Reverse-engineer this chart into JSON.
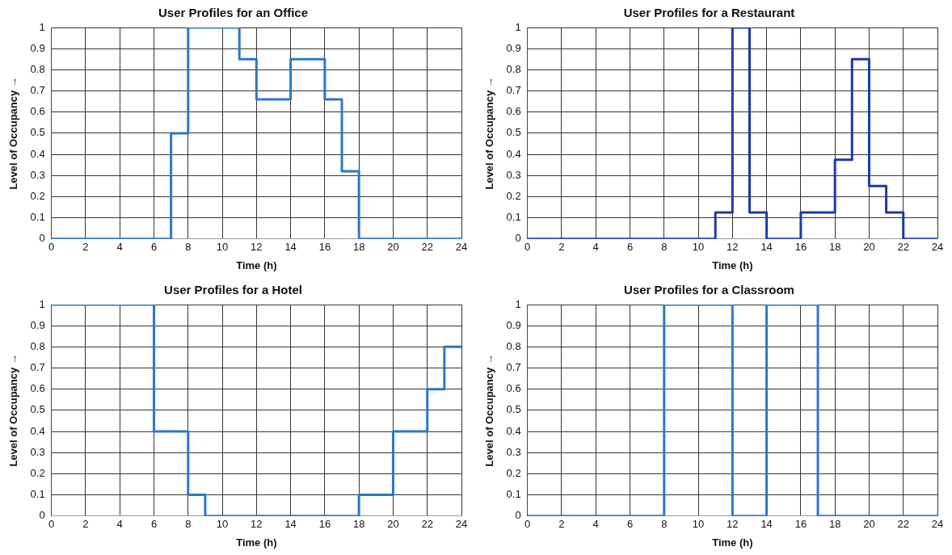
{
  "chart_data": [
    {
      "type": "step",
      "title": "User Profiles for an Office",
      "xlabel": "Time (h)",
      "ylabel": "Level of Occupancy →",
      "x": [
        0,
        7,
        8,
        11,
        12,
        14,
        16,
        17,
        18,
        24
      ],
      "series": [
        {
          "color": "#2b78c4",
          "values": [
            0,
            0.5,
            1,
            0.85,
            0.66,
            0.85,
            0.66,
            0.32,
            0,
            0
          ]
        }
      ],
      "xlim": [
        0,
        24
      ],
      "xticks": [
        0,
        2,
        4,
        6,
        8,
        10,
        12,
        14,
        16,
        18,
        20,
        22,
        24
      ],
      "ylim": [
        0,
        1
      ],
      "yticks": [
        0,
        0.1,
        0.2,
        0.3,
        0.4,
        0.5,
        0.6,
        0.7,
        0.8,
        0.9,
        1
      ],
      "grid": true,
      "legend": false,
      "marker": "none",
      "line_style": "solid"
    },
    {
      "type": "step",
      "title": "User Profiles for a Restaurant",
      "xlabel": "Time (h)",
      "ylabel": "Level of Occupancy →",
      "x": [
        0,
        11,
        12,
        13,
        14,
        16,
        18,
        19,
        20,
        21,
        22,
        24
      ],
      "series": [
        {
          "color": "#1c3aa6",
          "values": [
            0,
            0.125,
            1,
            0.125,
            0,
            0.125,
            0.375,
            0.85,
            0.25,
            0.125,
            0,
            0
          ]
        }
      ],
      "xlim": [
        0,
        24
      ],
      "xticks": [
        0,
        2,
        4,
        6,
        8,
        10,
        12,
        14,
        16,
        18,
        20,
        22,
        24
      ],
      "ylim": [
        0,
        1
      ],
      "yticks": [
        0,
        0.1,
        0.2,
        0.3,
        0.4,
        0.5,
        0.6,
        0.7,
        0.8,
        0.9,
        1
      ],
      "grid": true,
      "legend": false,
      "marker": "none",
      "line_style": "solid"
    },
    {
      "type": "step",
      "title": "User Profiles for a Hotel",
      "xlabel": "Time (h)",
      "ylabel": "Level of Occupancy →",
      "x": [
        0,
        6,
        8,
        9,
        18,
        20,
        22,
        23,
        24
      ],
      "series": [
        {
          "color": "#2b78c4",
          "values": [
            1,
            0.4,
            0.1,
            0,
            0.1,
            0.4,
            0.6,
            0.8,
            0.8
          ]
        }
      ],
      "xlim": [
        0,
        24
      ],
      "xticks": [
        0,
        2,
        4,
        6,
        8,
        10,
        12,
        14,
        16,
        18,
        20,
        22,
        24
      ],
      "ylim": [
        0,
        1
      ],
      "yticks": [
        0,
        0.1,
        0.2,
        0.3,
        0.4,
        0.5,
        0.6,
        0.7,
        0.8,
        0.9,
        1
      ],
      "grid": true,
      "legend": false,
      "marker": "none",
      "line_style": "solid"
    },
    {
      "type": "step",
      "title": "User Profiles for a Classroom",
      "xlabel": "Time (h)",
      "ylabel": "Level of Occupancy →",
      "x": [
        0,
        8,
        12,
        14,
        17,
        24
      ],
      "series": [
        {
          "color": "#2b78c4",
          "values": [
            0,
            1,
            0,
            1,
            0,
            0
          ]
        }
      ],
      "xlim": [
        0,
        24
      ],
      "xticks": [
        0,
        2,
        4,
        6,
        8,
        10,
        12,
        14,
        16,
        18,
        20,
        22,
        24
      ],
      "ylim": [
        0,
        1
      ],
      "yticks": [
        0,
        0.1,
        0.2,
        0.3,
        0.4,
        0.5,
        0.6,
        0.7,
        0.8,
        0.9,
        1
      ],
      "grid": true,
      "legend": false,
      "marker": "none",
      "line_style": "solid"
    }
  ]
}
